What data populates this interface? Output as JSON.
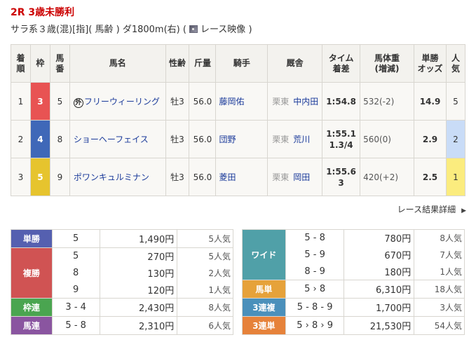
{
  "race": {
    "title": "2R 3歳未勝利",
    "conditions": "サラ系３歳(混)[指]( 馬齢 ) ダ1800m(右)  (",
    "video_label": "レース映像",
    "close_paren": ")"
  },
  "table": {
    "headers": [
      "着\n順",
      "枠",
      "馬\n番",
      "馬名",
      "性齢",
      "斤量",
      "騎手",
      "厩舎",
      "タイム\n着差",
      "馬体重\n(増減)",
      "単勝\nオッズ",
      "人\n気"
    ],
    "rows": [
      {
        "rank": "1",
        "gate": "3",
        "gate_color": "#e85353",
        "num": "5",
        "mark": "外",
        "name": "フリーウィーリング",
        "sex_age": "牡3",
        "weight": "56.0",
        "jockey": "藤岡佑",
        "stable_area": "栗東",
        "trainer": "中内田",
        "time": "1:54.8",
        "margin": "",
        "body": "532(-2)",
        "odds": "14.9",
        "pop": "5",
        "pop_bg": ""
      },
      {
        "rank": "2",
        "gate": "4",
        "gate_color": "#3f68b8",
        "num": "8",
        "mark": "",
        "name": "ショーヘーフェイス",
        "sex_age": "牡3",
        "weight": "56.0",
        "jockey": "団野",
        "stable_area": "栗東",
        "trainer": "荒川",
        "time": "1:55.1",
        "margin": "1.3/4",
        "body": "560(0)",
        "odds": "2.9",
        "pop": "2",
        "pop_bg": "#c9dcf7"
      },
      {
        "rank": "3",
        "gate": "5",
        "gate_color": "#e6c42e",
        "num": "9",
        "mark": "",
        "name": "ポワンキュルミナン",
        "sex_age": "牡3",
        "weight": "56.0",
        "jockey": "菱田",
        "stable_area": "栗東",
        "trainer": "岡田",
        "time": "1:55.6",
        "margin": "3",
        "body": "420(+2)",
        "odds": "2.5",
        "pop": "1",
        "pop_bg": "#fbec7e"
      }
    ]
  },
  "more_link": "レース結果詳細",
  "payout_left": [
    {
      "label": "単勝",
      "color": "#5560b0",
      "rows": [
        [
          "5",
          "1,490円",
          "5人気"
        ]
      ]
    },
    {
      "label": "複勝",
      "color": "#d05353",
      "rows": [
        [
          "5",
          "270円",
          "5人気"
        ],
        [
          "8",
          "130円",
          "2人気"
        ],
        [
          "9",
          "120円",
          "1人気"
        ]
      ]
    },
    {
      "label": "枠連",
      "color": "#4aa550",
      "rows": [
        [
          "3 - 4",
          "2,430円",
          "8人気"
        ]
      ]
    },
    {
      "label": "馬連",
      "color": "#8a55a0",
      "rows": [
        [
          "5 - 8",
          "2,310円",
          "6人気"
        ]
      ]
    }
  ],
  "payout_right": [
    {
      "label": "ワイド",
      "color": "#50a0a8",
      "rows": [
        [
          "5 - 8",
          "780円",
          "8人気"
        ],
        [
          "5 - 9",
          "670円",
          "7人気"
        ],
        [
          "8 - 9",
          "180円",
          "1人気"
        ]
      ]
    },
    {
      "label": "馬単",
      "color": "#e6a23a",
      "rows": [
        [
          "5 › 8",
          "6,310円",
          "18人気"
        ]
      ]
    },
    {
      "label": "3連複",
      "color": "#4a90bb",
      "rows": [
        [
          "5 - 8 - 9",
          "1,700円",
          "3人気"
        ]
      ]
    },
    {
      "label": "3連単",
      "color": "#e6823a",
      "rows": [
        [
          "5 › 8 › 9",
          "21,530円",
          "54人気"
        ]
      ]
    }
  ]
}
